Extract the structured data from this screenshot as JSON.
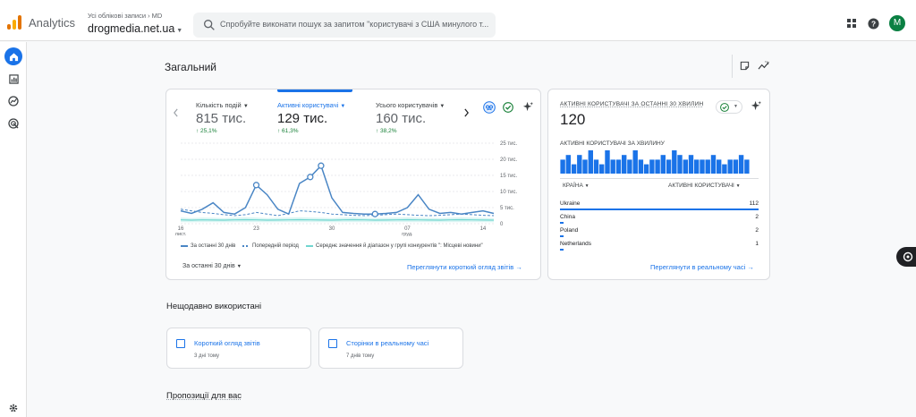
{
  "app": {
    "brand": "Analytics",
    "account_crumb": "Усі облікові записи › MD",
    "property": "drogmedia.net.ua",
    "search_placeholder": "Спробуйте виконати пошук за запитом \"користувачі з США минулого т...",
    "avatar_initial": "M"
  },
  "page": {
    "title": "Загальний"
  },
  "overview_card": {
    "metrics": [
      {
        "label": "Кількість подій",
        "value": "815 тис.",
        "change": "↑ 25,1%"
      },
      {
        "label": "Активні користувачі",
        "value": "129 тис.",
        "change": "↑ 61,3%"
      },
      {
        "label": "Усього користувачів",
        "value": "160 тис.",
        "change": "↑ 38,2%"
      }
    ],
    "date_range": "За останні 30 днів",
    "link": "Переглянути короткий огляд звітів",
    "legend": [
      "За останні 30 днів",
      "Попередній період",
      "Середнє значення й діапазон у групі конкурентів \": Місцеві новини\""
    ]
  },
  "chart_data": {
    "type": "line",
    "x_tick_labels": [
      "16 лист.",
      "23",
      "30",
      "07 груд.",
      "14"
    ],
    "y_tick_labels": [
      "25 тис.",
      "20 тис.",
      "15 тис.",
      "10 тис.",
      "5 тис.",
      "0"
    ],
    "ylim": [
      0,
      25000
    ],
    "series": [
      {
        "name": "За останні 30 днів",
        "color": "#4a86c5",
        "style": "solid",
        "values": [
          4000,
          3200,
          4500,
          6500,
          3500,
          3000,
          5000,
          12000,
          9000,
          4500,
          3000,
          12500,
          14500,
          18000,
          8000,
          3500,
          3200,
          3000,
          3000,
          3200,
          3500,
          5000,
          9000,
          4500,
          3200,
          3500,
          3000,
          3500,
          4000,
          3200
        ]
      },
      {
        "name": "Попередній період",
        "color": "#4a86c5",
        "style": "dashed",
        "values": [
          4500,
          4000,
          3500,
          3200,
          2800,
          2500,
          2800,
          3500,
          3000,
          2500,
          3200,
          4000,
          3800,
          3500,
          3000,
          2800,
          2600,
          2500,
          2600,
          2800,
          3000,
          2800,
          2600,
          2500,
          2600,
          2800,
          3000,
          2800,
          2600,
          2500
        ]
      },
      {
        "name": "Середнє значення й діапазон у групі конкурентів \": Місцеві новини\"",
        "color": "#71d6cf",
        "style": "area",
        "values": [
          1200,
          1100,
          1200,
          1150,
          1100,
          1200,
          1250,
          1200,
          1100,
          1150,
          1200,
          1250,
          1200,
          1150,
          1100,
          1200,
          1250,
          1200,
          1100,
          1150,
          1200,
          1250,
          1200,
          1150,
          1100,
          1200,
          1250,
          1200,
          1150,
          1100
        ]
      }
    ],
    "markers": [
      7,
      12,
      13,
      18
    ]
  },
  "realtime_card": {
    "title": "АКТИВНІ КОРИСТУВАЧІ ЗА ОСТАННІ 30 ХВИЛИН",
    "value": "120",
    "subtitle": "АКТИВНІ КОРИСТУВАЧІ ЗА ХВИЛИНУ",
    "per_minute": [
      3,
      4,
      2,
      4,
      3,
      5,
      3,
      2,
      5,
      3,
      3,
      4,
      3,
      5,
      3,
      2,
      3,
      3,
      4,
      3,
      5,
      4,
      3,
      4,
      3,
      3,
      3,
      4,
      3,
      2,
      3,
      3,
      4,
      3
    ],
    "col_country": "КРАЇНА",
    "col_users": "АКТИВНІ КОРИСТУВАЧІ",
    "rows": [
      {
        "country": "Ukraine",
        "users": "112",
        "share": 1.0
      },
      {
        "country": "China",
        "users": "2",
        "share": 0.02
      },
      {
        "country": "Poland",
        "users": "2",
        "share": 0.02
      },
      {
        "country": "Netherlands",
        "users": "1",
        "share": 0.01
      }
    ],
    "link": "Переглянути в реальному часі"
  },
  "recent": {
    "title": "Нещодавно використані",
    "items": [
      {
        "title": "Короткий огляд звітів",
        "time": "3 дні тому"
      },
      {
        "title": "Сторінки в реальному часі",
        "time": "7 днів тому"
      }
    ]
  },
  "suggestions": {
    "title": "Пропозиції для вас"
  },
  "colors": {
    "accent": "#1a73e8",
    "positive": "#188038",
    "line": "#4a86c5",
    "benchmark": "#71d6cf"
  }
}
